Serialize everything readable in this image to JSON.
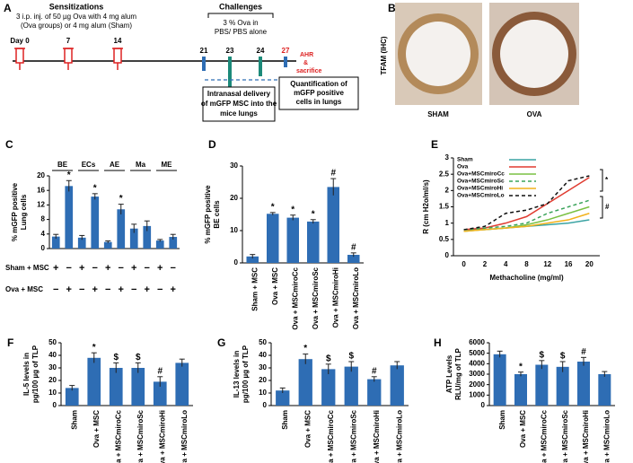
{
  "panel_a": {
    "label": "A",
    "sensitizations": {
      "title": "Sensitizations",
      "lines": [
        "3 i.p. inj. of 50 µg Ova with 4 mg alum",
        "(Ova  groups) or 4 mg alum (Sham)"
      ]
    },
    "days": [
      "Day 0",
      "7",
      "14"
    ],
    "challenges": {
      "title": "Challenges",
      "lines": [
        "3 % Ova in",
        "PBS/ PBS alone"
      ]
    },
    "challenge_days": [
      "21",
      "23",
      "24",
      "27"
    ],
    "endpoint": [
      "AHR",
      "&",
      "sacrifice"
    ],
    "boxes": [
      [
        "Intranasal delivery",
        "of mGFP MSC into the",
        "mice lungs"
      ],
      [
        "Quantification of",
        "mGFP positive",
        "cells in lungs"
      ]
    ]
  },
  "panel_b": {
    "label": "B",
    "ylabel": "TFAM  (IHC)",
    "images": [
      "SHAM",
      "OVA"
    ]
  },
  "chart_data": [
    {
      "type": "bar",
      "label": "C",
      "ylabel": [
        "% mGFP positive",
        "Lung cells"
      ],
      "groups": [
        "BE",
        "ECs",
        "AE",
        "Ma",
        "ME"
      ],
      "values": [
        3.3,
        17.2,
        3,
        14.3,
        1.8,
        10.8,
        5.5,
        6.2,
        2.2,
        3.2
      ],
      "errors": [
        0.6,
        1.5,
        0.6,
        0.8,
        0.3,
        1.4,
        1.2,
        1.4,
        0.3,
        0.7
      ],
      "annotations": [
        null,
        "*",
        null,
        "*",
        null,
        "*",
        null,
        null,
        null,
        null
      ],
      "rows": [
        {
          "name": "Sham + MSC",
          "signs": [
            "+",
            "−",
            "+",
            "−",
            "+",
            "−",
            "+",
            "−",
            "+",
            "−"
          ]
        },
        {
          "name": "Ova + MSC",
          "signs": [
            "−",
            "+",
            "−",
            "+",
            "−",
            "+",
            "−",
            "+",
            "−",
            "+"
          ]
        }
      ],
      "color": "#2e6db4",
      "ylim": [
        0,
        20
      ],
      "yticks": [
        0,
        4,
        8,
        12,
        16,
        20
      ]
    },
    {
      "type": "bar",
      "label": "D",
      "ylabel": [
        "% mGFP positive",
        "BE cells"
      ],
      "categories": [
        "Sham + MSC",
        "Ova + MSC",
        "Ova + MSCmiroCc",
        "Ova + MSCmiroSc",
        "Ova + MSCmiroHi",
        "Ova + MSCmiroLo"
      ],
      "values": [
        2,
        15.2,
        14,
        12.8,
        23.5,
        2.5
      ],
      "errors": [
        0.6,
        0.4,
        0.8,
        0.6,
        2.6,
        0.6
      ],
      "annotations": [
        null,
        "*",
        "*",
        "*",
        "#",
        "#"
      ],
      "color": "#2e6db4",
      "ylim": [
        0,
        30
      ],
      "yticks": [
        0,
        10,
        20,
        30
      ]
    },
    {
      "type": "line",
      "label": "E",
      "ylabel": [
        "R (cm H2o/ml/s)"
      ],
      "xlabel": "Methacholine (mg/ml)",
      "categories": [
        "0",
        "2",
        "4",
        "8",
        "12",
        "16",
        "20"
      ],
      "series": [
        {
          "name": "Sham",
          "color": "#3aa3a3",
          "dashed": false,
          "values": [
            0.8,
            0.8,
            0.85,
            0.9,
            0.95,
            1.0,
            1.1
          ]
        },
        {
          "name": "Ova",
          "color": "#e03c31",
          "dashed": false,
          "values": [
            0.8,
            0.85,
            1.0,
            1.2,
            1.6,
            2.0,
            2.4
          ]
        },
        {
          "name": "Ova+MSCmiroCc",
          "color": "#7ac143",
          "dashed": false,
          "values": [
            0.75,
            0.8,
            0.85,
            0.95,
            1.1,
            1.3,
            1.5
          ]
        },
        {
          "name": "Ova+MSCmiroSc",
          "color": "#3aa35a",
          "dashed": true,
          "values": [
            0.8,
            0.85,
            0.9,
            1.0,
            1.3,
            1.5,
            1.7
          ]
        },
        {
          "name": "Ova+MSCmiroHi",
          "color": "#f2b21c",
          "dashed": false,
          "values": [
            0.75,
            0.8,
            0.85,
            0.9,
            1.0,
            1.1,
            1.3
          ]
        },
        {
          "name": "Ova+MSCmiroLo",
          "color": "#111111",
          "dashed": true,
          "values": [
            0.8,
            0.9,
            1.3,
            1.4,
            1.6,
            2.3,
            2.45
          ]
        }
      ],
      "annotations": [
        "*",
        "#"
      ],
      "ylim": [
        0,
        3
      ],
      "yticks": [
        0,
        0.5,
        1,
        1.5,
        2,
        2.5,
        3
      ]
    },
    {
      "type": "bar",
      "label": "F",
      "ylabel": [
        "IL-5 levels in",
        "pg/100 µg of TLP"
      ],
      "categories": [
        "Sham",
        "Ova + MSC",
        "Ova + MSCmiroCc",
        "Ova + MSCmiroSc",
        "Ova + MSCmiroHi",
        "Ova + MSCmiroLo"
      ],
      "values": [
        14,
        38,
        30,
        30,
        19,
        34
      ],
      "errors": [
        2,
        4,
        4,
        4,
        4,
        3
      ],
      "annotations": [
        null,
        "*",
        "$",
        "$",
        "#",
        null
      ],
      "color": "#2e6db4",
      "ylim": [
        0,
        50
      ],
      "yticks": [
        0,
        10,
        20,
        30,
        40,
        50
      ]
    },
    {
      "type": "bar",
      "label": "G",
      "ylabel": [
        "IL-13 levels in",
        "pg/100 µg of TLP"
      ],
      "categories": [
        "Sham",
        "Ova + MSC",
        "Ova + MSCmiroCc",
        "Ova + MSCmiroSc",
        "Ova + MSCmiroHi",
        "Ova + MSCmiroLo"
      ],
      "values": [
        12,
        37,
        29,
        31,
        21,
        32
      ],
      "errors": [
        2,
        4,
        4,
        4,
        2,
        3
      ],
      "annotations": [
        null,
        "*",
        "$",
        "$",
        "#",
        null
      ],
      "color": "#2e6db4",
      "ylim": [
        0,
        50
      ],
      "yticks": [
        0,
        10,
        20,
        30,
        40,
        50
      ]
    },
    {
      "type": "bar",
      "label": "H",
      "ylabel": [
        "ATP Levels",
        "RLU/mg of TLP"
      ],
      "categories": [
        "Sham",
        "Ova + MSC",
        "Ova + MSCmiroCc",
        "Ova + MSCmiroSc",
        "Ova + MSCmiroHi",
        "Ova + MSCmiroLo"
      ],
      "values": [
        4900,
        3000,
        3900,
        3700,
        4200,
        3000
      ],
      "errors": [
        300,
        200,
        400,
        500,
        400,
        250
      ],
      "annotations": [
        null,
        "*",
        "$",
        "$",
        "#",
        null
      ],
      "color": "#2e6db4",
      "ylim": [
        0,
        6000
      ],
      "yticks": [
        0,
        1000,
        2000,
        3000,
        4000,
        5000,
        6000
      ]
    }
  ]
}
